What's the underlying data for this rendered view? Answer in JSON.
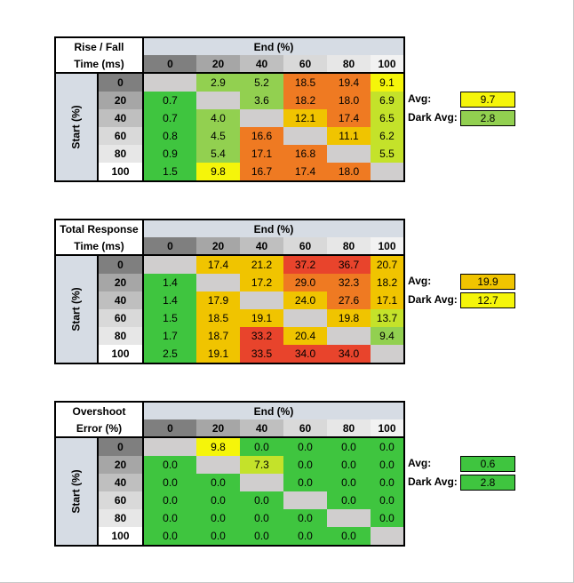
{
  "column_header": "End (%)",
  "row_header": "Start (%)",
  "columns": [
    "0",
    "20",
    "40",
    "60",
    "80",
    "100"
  ],
  "rows": [
    "0",
    "20",
    "40",
    "60",
    "80",
    "100"
  ],
  "avg_label": "Avg:",
  "dark_avg_label": "Dark Avg:",
  "colors": {
    "header_blue": "#d6dce4",
    "col_header_bg": [
      "#7f7f7f",
      "#a6a6a6",
      "#bfbfbf",
      "#d9d9d9",
      "#e7e7e7",
      "#f2f2f2"
    ],
    "row_header_bg": [
      "#7f7f7f",
      "#a6a6a6",
      "#bfbfbf",
      "#d9d9d9",
      "#e7e7e7",
      "#ffffff"
    ],
    "diagonal": "#d0cece",
    "scale": [
      "#3fc53f",
      "#92d050",
      "#c4e22a",
      "#f5f50a",
      "#f0c400",
      "#ef7a22",
      "#e8442c"
    ]
  },
  "tables": [
    {
      "title_line1": "Rise / Fall",
      "title_line2": "Time (ms)",
      "cells": [
        [
          "",
          "2.9",
          "5.2",
          "18.5",
          "19.4",
          "9.1"
        ],
        [
          "0.7",
          "",
          "3.6",
          "18.2",
          "18.0",
          "6.9"
        ],
        [
          "0.7",
          "4.0",
          "",
          "12.1",
          "17.4",
          "6.5"
        ],
        [
          "0.8",
          "4.5",
          "16.6",
          "",
          "11.1",
          "6.2"
        ],
        [
          "0.9",
          "5.4",
          "17.1",
          "16.8",
          "",
          "5.5"
        ],
        [
          "1.5",
          "9.8",
          "16.7",
          "17.4",
          "18.0",
          ""
        ]
      ],
      "cell_colors": [
        [
          "#d0cece",
          "#92d050",
          "#92d050",
          "#ef7a22",
          "#ef7a22",
          "#f5f50a"
        ],
        [
          "#3fc53f",
          "#d0cece",
          "#92d050",
          "#ef7a22",
          "#ef7a22",
          "#c4e22a"
        ],
        [
          "#3fc53f",
          "#92d050",
          "#d0cece",
          "#f0c400",
          "#ef7a22",
          "#c4e22a"
        ],
        [
          "#3fc53f",
          "#92d050",
          "#ef7a22",
          "#d0cece",
          "#f0c400",
          "#c4e22a"
        ],
        [
          "#3fc53f",
          "#92d050",
          "#ef7a22",
          "#ef7a22",
          "#d0cece",
          "#c4e22a"
        ],
        [
          "#3fc53f",
          "#f5f50a",
          "#ef7a22",
          "#ef7a22",
          "#ef7a22",
          "#d0cece"
        ]
      ],
      "avg": "9.7",
      "avg_color": "#f5f50a",
      "dark_avg": "2.8",
      "dark_avg_color": "#92d050"
    },
    {
      "title_line1": "Total Response",
      "title_line2": "Time (ms)",
      "cells": [
        [
          "",
          "17.4",
          "21.2",
          "37.2",
          "36.7",
          "20.7"
        ],
        [
          "1.4",
          "",
          "17.2",
          "29.0",
          "32.3",
          "18.2"
        ],
        [
          "1.4",
          "17.9",
          "",
          "24.0",
          "27.6",
          "17.1"
        ],
        [
          "1.5",
          "18.5",
          "19.1",
          "",
          "19.8",
          "13.7"
        ],
        [
          "1.7",
          "18.7",
          "33.2",
          "20.4",
          "",
          "9.4"
        ],
        [
          "2.5",
          "19.1",
          "33.5",
          "34.0",
          "34.0",
          ""
        ]
      ],
      "cell_colors": [
        [
          "#d0cece",
          "#f0c400",
          "#f0c400",
          "#e8442c",
          "#e8442c",
          "#f0c400"
        ],
        [
          "#3fc53f",
          "#d0cece",
          "#f0c400",
          "#ef7a22",
          "#ef7a22",
          "#f0c400"
        ],
        [
          "#3fc53f",
          "#f0c400",
          "#d0cece",
          "#f0c400",
          "#ef7a22",
          "#f0c400"
        ],
        [
          "#3fc53f",
          "#f0c400",
          "#f0c400",
          "#d0cece",
          "#f0c400",
          "#c4e22a"
        ],
        [
          "#3fc53f",
          "#f0c400",
          "#e8442c",
          "#f0c400",
          "#d0cece",
          "#92d050"
        ],
        [
          "#3fc53f",
          "#f0c400",
          "#e8442c",
          "#e8442c",
          "#e8442c",
          "#d0cece"
        ]
      ],
      "avg": "19.9",
      "avg_color": "#f0c400",
      "dark_avg": "12.7",
      "dark_avg_color": "#f5f50a"
    },
    {
      "title_line1": "Overshoot",
      "title_line2": "Error (%)",
      "cells": [
        [
          "",
          "9.8",
          "0.0",
          "0.0",
          "0.0",
          "0.0"
        ],
        [
          "0.0",
          "",
          "7.3",
          "0.0",
          "0.0",
          "0.0"
        ],
        [
          "0.0",
          "0.0",
          "",
          "0.0",
          "0.0",
          "0.0"
        ],
        [
          "0.0",
          "0.0",
          "0.0",
          "",
          "0.0",
          "0.0"
        ],
        [
          "0.0",
          "0.0",
          "0.0",
          "0.0",
          "",
          "0.0"
        ],
        [
          "0.0",
          "0.0",
          "0.0",
          "0.0",
          "0.0",
          ""
        ]
      ],
      "cell_colors": [
        [
          "#d0cece",
          "#f5f50a",
          "#3fc53f",
          "#3fc53f",
          "#3fc53f",
          "#3fc53f"
        ],
        [
          "#3fc53f",
          "#d0cece",
          "#c4e22a",
          "#3fc53f",
          "#3fc53f",
          "#3fc53f"
        ],
        [
          "#3fc53f",
          "#3fc53f",
          "#d0cece",
          "#3fc53f",
          "#3fc53f",
          "#3fc53f"
        ],
        [
          "#3fc53f",
          "#3fc53f",
          "#3fc53f",
          "#d0cece",
          "#3fc53f",
          "#3fc53f"
        ],
        [
          "#3fc53f",
          "#3fc53f",
          "#3fc53f",
          "#3fc53f",
          "#d0cece",
          "#3fc53f"
        ],
        [
          "#3fc53f",
          "#3fc53f",
          "#3fc53f",
          "#3fc53f",
          "#3fc53f",
          "#d0cece"
        ]
      ],
      "avg": "0.6",
      "avg_color": "#3fc53f",
      "dark_avg": "2.8",
      "dark_avg_color": "#3fc53f"
    }
  ]
}
